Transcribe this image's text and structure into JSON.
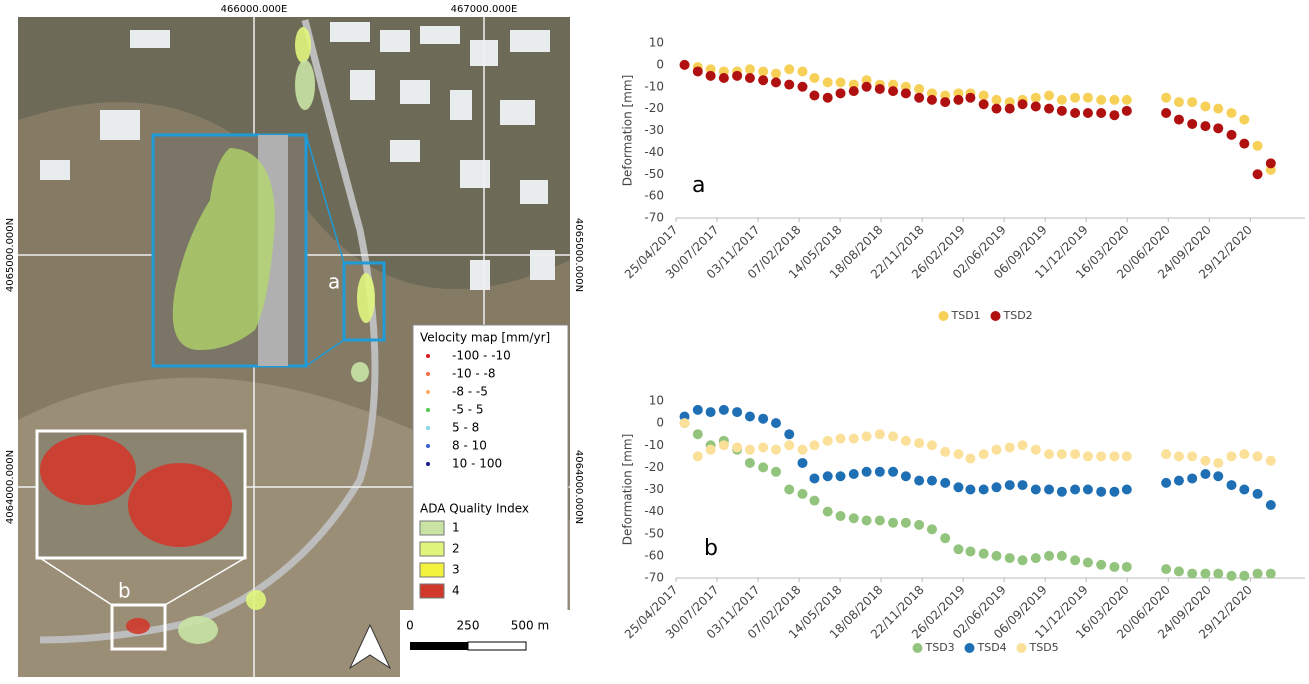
{
  "chart_data": [
    {
      "type": "scatter",
      "ylabel": "Deformation [mm]",
      "annotation": "a",
      "x": [
        "15/05/2017",
        "15/06/2017",
        "15/07/2017",
        "15/08/2017",
        "15/09/2017",
        "15/10/2017",
        "15/11/2017",
        "15/12/2017",
        "15/01/2018",
        "15/02/2018",
        "15/03/2018",
        "15/04/2018",
        "15/05/2018",
        "15/06/2018",
        "15/07/2018",
        "15/08/2018",
        "15/09/2018",
        "15/10/2018",
        "15/11/2018",
        "15/12/2018",
        "15/01/2019",
        "15/02/2019",
        "15/03/2019",
        "15/04/2019",
        "15/05/2019",
        "15/06/2019",
        "15/07/2019",
        "15/08/2019",
        "15/09/2019",
        "15/10/2019",
        "15/11/2019",
        "15/12/2019",
        "15/01/2020",
        "15/02/2020",
        "15/03/2020",
        "15/04/2020",
        "15/05/2020",
        "15/06/2020",
        "15/07/2020",
        "15/08/2020",
        "15/09/2020",
        "15/10/2020",
        "15/11/2020",
        "15/12/2020",
        "15/01/2021",
        "15/02/2021"
      ],
      "series": [
        {
          "name": "TSD1",
          "color": "#f7d058",
          "values": [
            0,
            -1,
            -2,
            -3,
            -3,
            -2,
            -3,
            -4,
            -2,
            -3,
            -6,
            -8,
            -8,
            -9,
            -7,
            -9,
            -9,
            -10,
            -11,
            -13,
            -14,
            -13,
            -13,
            -14,
            -16,
            -17,
            -16,
            -15,
            -14,
            -16,
            -15,
            -15,
            -16,
            -16,
            -16,
            null,
            null,
            -15,
            -17,
            -17,
            -19,
            -20,
            -22,
            -25,
            -37,
            -48
          ]
        },
        {
          "name": "TSD2",
          "color": "#b01010",
          "values": [
            0,
            -3,
            -5,
            -6,
            -5,
            -6,
            -7,
            -8,
            -9,
            -10,
            -14,
            -15,
            -13,
            -12,
            -10,
            -11,
            -12,
            -13,
            -15,
            -16,
            -17,
            -16,
            -15,
            -18,
            -20,
            -20,
            -18,
            -19,
            -20,
            -21,
            -22,
            -22,
            -22,
            -23,
            -21,
            null,
            null,
            -22,
            -25,
            -27,
            -28,
            -29,
            -32,
            -36,
            -50,
            -45
          ]
        }
      ],
      "xlim": [
        "25/04/2017",
        "06/05/2021"
      ],
      "xticks": [
        "25/04/2017",
        "30/07/2017",
        "03/11/2017",
        "07/02/2018",
        "14/05/2018",
        "18/08/2018",
        "22/11/2018",
        "26/02/2019",
        "02/06/2019",
        "06/09/2019",
        "11/12/2019",
        "16/03/2020",
        "20/06/2020",
        "24/09/2020",
        "29/12/2020"
      ],
      "ylim": [
        -70,
        10
      ],
      "yticks": [
        -70,
        -60,
        -50,
        -40,
        -30,
        -20,
        -10,
        0,
        10
      ],
      "grid": false
    },
    {
      "type": "scatter",
      "ylabel": "Deformation [mm]",
      "annotation": "b",
      "x": [
        "15/05/2017",
        "15/06/2017",
        "15/07/2017",
        "15/08/2017",
        "15/09/2017",
        "15/10/2017",
        "15/11/2017",
        "15/12/2017",
        "15/01/2018",
        "15/02/2018",
        "15/03/2018",
        "15/04/2018",
        "15/05/2018",
        "15/06/2018",
        "15/07/2018",
        "15/08/2018",
        "15/09/2018",
        "15/10/2018",
        "15/11/2018",
        "15/12/2018",
        "15/01/2019",
        "15/02/2019",
        "15/03/2019",
        "15/04/2019",
        "15/05/2019",
        "15/06/2019",
        "15/07/2019",
        "15/08/2019",
        "15/09/2019",
        "15/10/2019",
        "15/11/2019",
        "15/12/2019",
        "15/01/2020",
        "15/02/2020",
        "15/03/2020",
        "15/04/2020",
        "15/05/2020",
        "15/06/2020",
        "15/07/2020",
        "15/08/2020",
        "15/09/2020",
        "15/10/2020",
        "15/11/2020",
        "15/12/2020",
        "15/01/2021",
        "15/02/2021"
      ],
      "series": [
        {
          "name": "TSD3",
          "color": "#93c47d",
          "values": [
            0,
            -5,
            -10,
            -8,
            -12,
            -18,
            -20,
            -22,
            -30,
            -32,
            -35,
            -40,
            -42,
            -43,
            -44,
            -44,
            -45,
            -45,
            -46,
            -48,
            -52,
            -57,
            -58,
            -59,
            -60,
            -61,
            -62,
            -61,
            -60,
            -60,
            -62,
            -63,
            -64,
            -65,
            -65,
            null,
            null,
            -66,
            -67,
            -68,
            -68,
            -68,
            -69,
            -69,
            -68,
            -68
          ]
        },
        {
          "name": "TSD4",
          "color": "#1f6fb4",
          "values": [
            3,
            6,
            5,
            6,
            5,
            3,
            2,
            0,
            -5,
            -18,
            -25,
            -24,
            -24,
            -23,
            -22,
            -22,
            -22,
            -24,
            -26,
            -26,
            -27,
            -29,
            -30,
            -30,
            -29,
            -28,
            -28,
            -30,
            -30,
            -31,
            -30,
            -30,
            -31,
            -31,
            -30,
            null,
            null,
            -27,
            -26,
            -25,
            -23,
            -24,
            -28,
            -30,
            -32,
            -37
          ]
        },
        {
          "name": "TSD5",
          "color": "#fbe09a",
          "values": [
            0,
            -15,
            -12,
            -10,
            -11,
            -12,
            -11,
            -12,
            -10,
            -12,
            -10,
            -8,
            -7,
            -7,
            -6,
            -5,
            -6,
            -8,
            -9,
            -10,
            -13,
            -14,
            -16,
            -14,
            -12,
            -11,
            -10,
            -12,
            -14,
            -14,
            -14,
            -15,
            -15,
            -15,
            -15,
            null,
            null,
            -14,
            -15,
            -15,
            -17,
            -18,
            -15,
            -14,
            -15,
            -17
          ]
        }
      ],
      "xlim": [
        "25/04/2017",
        "06/05/2021"
      ],
      "xticks": [
        "25/04/2017",
        "30/07/2017",
        "03/11/2017",
        "07/02/2018",
        "14/05/2018",
        "18/08/2018",
        "22/11/2018",
        "26/02/2019",
        "02/06/2019",
        "06/09/2019",
        "11/12/2019",
        "16/03/2020",
        "20/06/2020",
        "24/09/2020",
        "29/12/2020"
      ],
      "ylim": [
        -70,
        10
      ],
      "yticks": [
        -70,
        -60,
        -50,
        -40,
        -30,
        -20,
        -10,
        0,
        10
      ],
      "grid": false
    }
  ],
  "map": {
    "top_labels": [
      "466000.000E",
      "467000.000E"
    ],
    "left_labels": [
      "4065000.000N",
      "4064000.000N"
    ],
    "right_labels": [
      "4065000.000N",
      "4064000.000N"
    ],
    "inset_labels": [
      "a",
      "b"
    ],
    "legend": {
      "velocity_title": "Velocity map [mm/yr]",
      "velocity_items": [
        {
          "label": "-100 - -10",
          "color": "#d7191c"
        },
        {
          "label": "-10 - -8",
          "color": "#f46d43"
        },
        {
          "label": "-8 - -5",
          "color": "#fdae61"
        },
        {
          "label": "-5 - 5",
          "color": "#4ec94e"
        },
        {
          "label": "5 - 8",
          "color": "#7fd6e8"
        },
        {
          "label": "8 - 10",
          "color": "#3a5fd0"
        },
        {
          "label": "10 - 100",
          "color": "#1a1a8c"
        }
      ],
      "quality_title": "ADA Quality Index",
      "quality_items": [
        {
          "label": "1",
          "color": "#c8e3a4"
        },
        {
          "label": "2",
          "color": "#dff57c"
        },
        {
          "label": "3",
          "color": "#f3f23c"
        },
        {
          "label": "4",
          "color": "#d0392c"
        }
      ]
    },
    "scale_labels": [
      "0",
      "250",
      "500 m"
    ]
  }
}
